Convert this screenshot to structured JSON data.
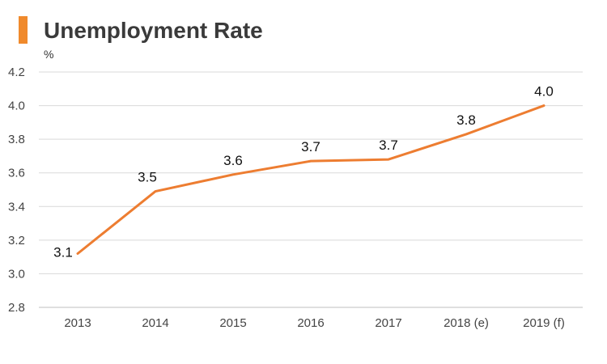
{
  "colors": {
    "accent": "#f08a2c",
    "line": "#ed7d31",
    "grid": "#d9d9d9",
    "axis": "#bfbfbf"
  },
  "chart_data": {
    "type": "line",
    "title": "Unemployment Rate",
    "unit_label": "%",
    "categories": [
      "2013",
      "2014",
      "2015",
      "2016",
      "2017",
      "2018 (e)",
      "2019 (f)"
    ],
    "series": [
      {
        "values": [
          3.12,
          3.49,
          3.59,
          3.67,
          3.68,
          3.83,
          4.0
        ],
        "labels": [
          "3.1",
          "3.5",
          "3.6",
          "3.7",
          "3.7",
          "3.8",
          "4.0"
        ]
      }
    ],
    "ylim": [
      2.8,
      4.2
    ],
    "yticks": [
      "2.8",
      "3.0",
      "3.2",
      "3.4",
      "3.6",
      "3.8",
      "4.0",
      "4.2"
    ],
    "grid": true,
    "legend": "none"
  }
}
